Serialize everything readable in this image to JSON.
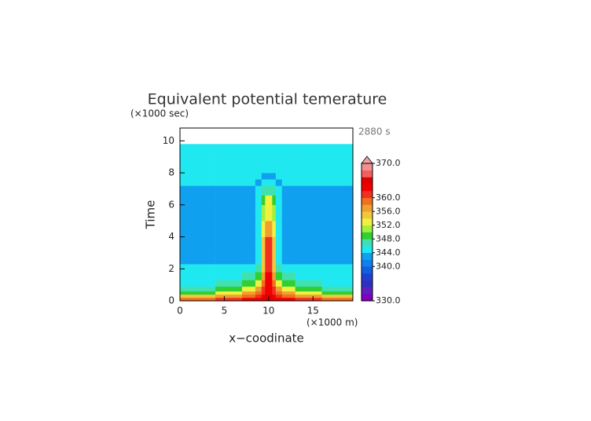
{
  "chart_data": {
    "type": "heatmap",
    "title": "Equivalent potential temerature",
    "y_unit": "(×1000 sec)",
    "x_unit": "(×1000 m)",
    "annotation": "2880 s",
    "xlabel": "x−coodinate",
    "ylabel": "Time",
    "xlim": [
      0,
      19.5
    ],
    "ylim": [
      0,
      10.8
    ],
    "xticks": [
      0,
      5,
      10,
      15
    ],
    "yticks": [
      0,
      2,
      4,
      6,
      8,
      10
    ],
    "x_edges": [
      0,
      4,
      7,
      8.5,
      9.2,
      9.6,
      10.4,
      10.8,
      11.5,
      13,
      16,
      19.5
    ],
    "y_edges": [
      0,
      0.2,
      0.4,
      0.6,
      0.9,
      1.3,
      1.8,
      2.3,
      3,
      4,
      5,
      6,
      6.6,
      7.2,
      7.6,
      8,
      9.8
    ],
    "values": [
      [
        359,
        361,
        362,
        363,
        364,
        365,
        364,
        363,
        362,
        361,
        359
      ],
      [
        355,
        357,
        359,
        361,
        362,
        364,
        362,
        361,
        359,
        357,
        355
      ],
      [
        349,
        353,
        356,
        358,
        361,
        363,
        361,
        358,
        356,
        353,
        349
      ],
      [
        347,
        349,
        353,
        356,
        360,
        363,
        360,
        356,
        353,
        349,
        347
      ],
      [
        345,
        347,
        349,
        353,
        359,
        362,
        359,
        353,
        349,
        347,
        345
      ],
      [
        345,
        345,
        346,
        349,
        357,
        362,
        357,
        349,
        346,
        345,
        345
      ],
      [
        345,
        345,
        345,
        346,
        355,
        361,
        355,
        346,
        345,
        345,
        345
      ],
      [
        343,
        343,
        343,
        345,
        355,
        361,
        355,
        345,
        343,
        343,
        343
      ],
      [
        343,
        343,
        343,
        345,
        354,
        361,
        354,
        345,
        343,
        343,
        343
      ],
      [
        343,
        343,
        343,
        345,
        353,
        357,
        353,
        345,
        343,
        343,
        343
      ],
      [
        343,
        343,
        343,
        345,
        351,
        353,
        351,
        345,
        343,
        343,
        343
      ],
      [
        343,
        343,
        343,
        345,
        349,
        352,
        349,
        345,
        343,
        343,
        343
      ],
      [
        343,
        343,
        343,
        344,
        346,
        347,
        346,
        344,
        343,
        343,
        343
      ],
      [
        345,
        345,
        345,
        343,
        344,
        345,
        344,
        343,
        345,
        345,
        345
      ],
      [
        345,
        345,
        345,
        345,
        343,
        343,
        343,
        345,
        345,
        345,
        345
      ],
      [
        345,
        345,
        345,
        345,
        345,
        345,
        345,
        345,
        345,
        345,
        345
      ]
    ],
    "levels": [
      330,
      332,
      334,
      336,
      338,
      340,
      342,
      344,
      346,
      348,
      350,
      352,
      354,
      356,
      358,
      360,
      362,
      364,
      366,
      368,
      370
    ],
    "colors": [
      "#8000c0",
      "#6020c0",
      "#3030c0",
      "#2040d0",
      "#1060e0",
      "#1080f0",
      "#10a0f0",
      "#20e8f0",
      "#40e0b0",
      "#30d030",
      "#a0f040",
      "#f0f040",
      "#f0c840",
      "#f0a030",
      "#f07020",
      "#f03020",
      "#f00000",
      "#e00000",
      "#f06060",
      "#f09090"
    ],
    "extend_color": "#f0a0a0",
    "cbar_lim": [
      330,
      370
    ],
    "cbar_ticks": [
      {
        "value": 330,
        "label": "330.0"
      },
      {
        "value": 340,
        "label": "340.0"
      },
      {
        "value": 344,
        "label": "344.0"
      },
      {
        "value": 348,
        "label": "348.0"
      },
      {
        "value": 352,
        "label": "352.0"
      },
      {
        "value": 356,
        "label": "356.0"
      },
      {
        "value": 360,
        "label": "360.0"
      },
      {
        "value": 370,
        "label": "370.0"
      }
    ]
  }
}
